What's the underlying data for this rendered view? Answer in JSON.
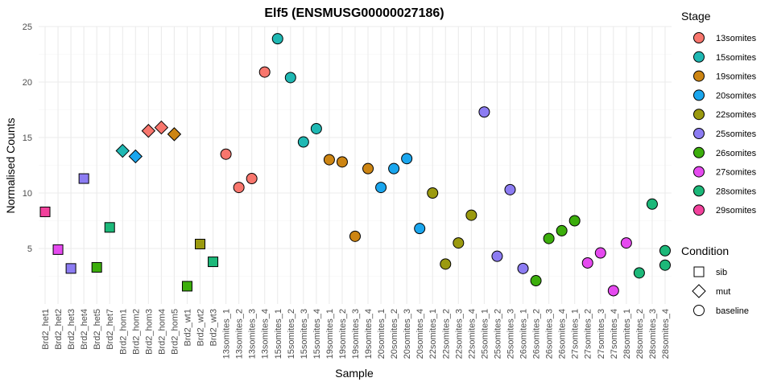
{
  "chart_data": {
    "type": "scatter",
    "title": "Elf5 (ENSMUSG00000027186)",
    "xlabel": "Sample",
    "ylabel": "Normalised Counts",
    "ylim": [
      0,
      25
    ],
    "yticks": [
      5,
      10,
      15,
      20,
      25
    ],
    "grid": true,
    "categories": [
      "Brd2_het1",
      "Brd2_het2",
      "Brd2_het3",
      "Brd2_het4",
      "Brd2_het5",
      "Brd2_het7",
      "Brd2_hom1",
      "Brd2_hom2",
      "Brd2_hom3",
      "Brd2_hom4",
      "Brd2_hom5",
      "Brd2_wt1",
      "Brd2_wt2",
      "Brd2_wt3",
      "13somites_1",
      "13somites_2",
      "13somites_3",
      "13somites_4",
      "15somites_1",
      "15somites_2",
      "15somites_3",
      "15somites_4",
      "19somites_1",
      "19somites_2",
      "19somites_3",
      "19somites_4",
      "20somites_1",
      "20somites_2",
      "20somites_3",
      "20somites_4",
      "22somites_1",
      "22somites_2",
      "22somites_3",
      "22somites_4",
      "25somites_1",
      "25somites_2",
      "25somites_3",
      "26somites_1",
      "26somites_2",
      "26somites_3",
      "26somites_4",
      "27somites_1",
      "27somites_2",
      "27somites_3",
      "27somites_4",
      "28somites_1",
      "28somites_2",
      "28somites_3",
      "28somites_4"
    ],
    "points": [
      {
        "sample": "Brd2_het1",
        "value": 8.3,
        "stage": "29somites",
        "condition": "sib"
      },
      {
        "sample": "Brd2_het2",
        "value": 4.9,
        "stage": "27somites",
        "condition": "sib"
      },
      {
        "sample": "Brd2_het3",
        "value": 3.2,
        "stage": "25somites",
        "condition": "sib"
      },
      {
        "sample": "Brd2_het4",
        "value": 11.3,
        "stage": "25somites",
        "condition": "sib"
      },
      {
        "sample": "Brd2_het5",
        "value": 3.3,
        "stage": "26somites",
        "condition": "sib"
      },
      {
        "sample": "Brd2_het7",
        "value": 6.9,
        "stage": "28somites",
        "condition": "sib"
      },
      {
        "sample": "Brd2_hom1",
        "value": 13.8,
        "stage": "15somites",
        "condition": "mut"
      },
      {
        "sample": "Brd2_hom2",
        "value": 13.3,
        "stage": "20somites",
        "condition": "mut"
      },
      {
        "sample": "Brd2_hom3",
        "value": 15.6,
        "stage": "13somites",
        "condition": "mut"
      },
      {
        "sample": "Brd2_hom4",
        "value": 15.9,
        "stage": "13somites",
        "condition": "mut"
      },
      {
        "sample": "Brd2_hom5",
        "value": 15.3,
        "stage": "19somites",
        "condition": "mut"
      },
      {
        "sample": "Brd2_wt1",
        "value": 1.6,
        "stage": "26somites",
        "condition": "sib"
      },
      {
        "sample": "Brd2_wt2",
        "value": 5.4,
        "stage": "22somites",
        "condition": "sib"
      },
      {
        "sample": "Brd2_wt3",
        "value": 3.8,
        "stage": "28somites",
        "condition": "sib"
      },
      {
        "sample": "13somites_1",
        "value": 13.5,
        "stage": "13somites",
        "condition": "baseline"
      },
      {
        "sample": "13somites_2",
        "value": 10.5,
        "stage": "13somites",
        "condition": "baseline"
      },
      {
        "sample": "13somites_3",
        "value": 11.3,
        "stage": "13somites",
        "condition": "baseline"
      },
      {
        "sample": "13somites_4",
        "value": 20.9,
        "stage": "13somites",
        "condition": "baseline"
      },
      {
        "sample": "15somites_1",
        "value": 23.9,
        "stage": "15somites",
        "condition": "baseline"
      },
      {
        "sample": "15somites_2",
        "value": 20.4,
        "stage": "15somites",
        "condition": "baseline"
      },
      {
        "sample": "15somites_3",
        "value": 14.6,
        "stage": "15somites",
        "condition": "baseline"
      },
      {
        "sample": "15somites_4",
        "value": 15.8,
        "stage": "15somites",
        "condition": "baseline"
      },
      {
        "sample": "19somites_1",
        "value": 13.0,
        "stage": "19somites",
        "condition": "baseline"
      },
      {
        "sample": "19somites_2",
        "value": 12.8,
        "stage": "19somites",
        "condition": "baseline"
      },
      {
        "sample": "19somites_3",
        "value": 6.1,
        "stage": "19somites",
        "condition": "baseline"
      },
      {
        "sample": "19somites_4",
        "value": 12.2,
        "stage": "19somites",
        "condition": "baseline"
      },
      {
        "sample": "20somites_1",
        "value": 10.5,
        "stage": "20somites",
        "condition": "baseline"
      },
      {
        "sample": "20somites_2",
        "value": 12.2,
        "stage": "20somites",
        "condition": "baseline"
      },
      {
        "sample": "20somites_3",
        "value": 13.1,
        "stage": "20somites",
        "condition": "baseline"
      },
      {
        "sample": "20somites_4",
        "value": 6.8,
        "stage": "20somites",
        "condition": "baseline"
      },
      {
        "sample": "22somites_1",
        "value": 10.0,
        "stage": "22somites",
        "condition": "baseline"
      },
      {
        "sample": "22somites_2",
        "value": 3.6,
        "stage": "22somites",
        "condition": "baseline"
      },
      {
        "sample": "22somites_3",
        "value": 5.5,
        "stage": "22somites",
        "condition": "baseline"
      },
      {
        "sample": "22somites_4",
        "value": 8.0,
        "stage": "22somites",
        "condition": "baseline"
      },
      {
        "sample": "25somites_1",
        "value": 17.3,
        "stage": "25somites",
        "condition": "baseline"
      },
      {
        "sample": "25somites_2",
        "value": 4.3,
        "stage": "25somites",
        "condition": "baseline"
      },
      {
        "sample": "25somites_3",
        "value": 10.3,
        "stage": "25somites",
        "condition": "baseline"
      },
      {
        "sample": "26somites_1",
        "value": 3.2,
        "stage": "25somites",
        "condition": "baseline"
      },
      {
        "sample": "26somites_2",
        "value": 2.1,
        "stage": "26somites",
        "condition": "baseline"
      },
      {
        "sample": "26somites_3",
        "value": 5.9,
        "stage": "26somites",
        "condition": "baseline"
      },
      {
        "sample": "26somites_4",
        "value": 6.6,
        "stage": "26somites",
        "condition": "baseline"
      },
      {
        "sample": "27somites_1",
        "value": 7.5,
        "stage": "26somites",
        "condition": "baseline"
      },
      {
        "sample": "27somites_2",
        "value": 3.7,
        "stage": "27somites",
        "condition": "baseline"
      },
      {
        "sample": "27somites_3",
        "value": 4.6,
        "stage": "27somites",
        "condition": "baseline"
      },
      {
        "sample": "27somites_4",
        "value": 1.2,
        "stage": "27somites",
        "condition": "baseline"
      },
      {
        "sample": "28somites_1",
        "value": 5.5,
        "stage": "27somites",
        "condition": "baseline"
      },
      {
        "sample": "28somites_2",
        "value": 2.8,
        "stage": "28somites",
        "condition": "baseline"
      },
      {
        "sample": "28somites_3",
        "value": 9.0,
        "stage": "28somites",
        "condition": "baseline"
      },
      {
        "sample": "28somites_4",
        "value": 3.5,
        "stage": "28somites",
        "condition": "baseline"
      }
    ],
    "extra_points": [
      {
        "sample": "28somites_4",
        "value": 4.8,
        "stage": "28somites",
        "condition": "baseline"
      }
    ],
    "legend": {
      "placement": "right",
      "stage_title": "Stage",
      "stages": [
        {
          "label": "13somites",
          "color": "#F8766D"
        },
        {
          "label": "15somites",
          "color": "#1FB8B3"
        },
        {
          "label": "19somites",
          "color": "#CD8513"
        },
        {
          "label": "20somites",
          "color": "#1AA6EE"
        },
        {
          "label": "22somites",
          "color": "#9B9A0F"
        },
        {
          "label": "25somites",
          "color": "#8C7CF2"
        },
        {
          "label": "26somites",
          "color": "#3CAE0C"
        },
        {
          "label": "27somites",
          "color": "#E54AEF"
        },
        {
          "label": "28somites",
          "color": "#1CB879"
        },
        {
          "label": "29somites",
          "color": "#F2419C"
        }
      ],
      "condition_title": "Condition",
      "conditions": [
        {
          "label": "sib",
          "shape": "square"
        },
        {
          "label": "mut",
          "shape": "diamond"
        },
        {
          "label": "baseline",
          "shape": "circle"
        }
      ]
    }
  }
}
